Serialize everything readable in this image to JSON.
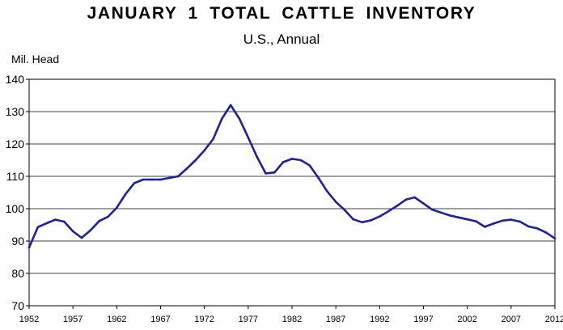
{
  "chart_data": {
    "type": "line",
    "title": "JANUARY 1 TOTAL CATTLE INVENTORY",
    "subtitle": "U.S., Annual",
    "ylabel": "Mil. Head",
    "xlabel": "",
    "ylim": [
      70,
      140
    ],
    "xlim": [
      1952,
      2012
    ],
    "grid": true,
    "line_color": "#1f1fa0",
    "yticks": [
      "70",
      "80",
      "90",
      "100",
      "110",
      "120",
      "130",
      "140"
    ],
    "xticks": [
      "1952",
      "1957",
      "1962",
      "1967",
      "1972",
      "1977",
      "1982",
      "1987",
      "1992",
      "1997",
      "2002",
      "2007",
      "2012"
    ],
    "series": [
      {
        "x": [
          1952,
          1953,
          1954,
          1955,
          1956,
          1957,
          1958,
          1959,
          1960,
          1961,
          1962,
          1963,
          1964,
          1965,
          1966,
          1967,
          1968,
          1969,
          1970,
          1971,
          1972,
          1973,
          1974,
          1975,
          1976,
          1977,
          1978,
          1979,
          1980,
          1981,
          1982,
          1983,
          1984,
          1985,
          1986,
          1987,
          1988,
          1989,
          1990,
          1991,
          1992,
          1993,
          1994,
          1995,
          1996,
          1997,
          1998,
          1999,
          2000,
          2001,
          2002,
          2003,
          2004,
          2005,
          2006,
          2007,
          2008,
          2009,
          2010,
          2011,
          2012
        ],
        "values": [
          88,
          94.3,
          95.5,
          96.6,
          96,
          93,
          91,
          93.3,
          96.2,
          97.5,
          100.3,
          104.5,
          107.9,
          109,
          109,
          109,
          109.5,
          110,
          112.4,
          115,
          118,
          121.5,
          127.8,
          132,
          127.8,
          122,
          116,
          110.9,
          111.2,
          114.4,
          115.4,
          115,
          113.4,
          109.6,
          105.4,
          102.1,
          99.6,
          96.7,
          95.8,
          96.4,
          97.6,
          99.2,
          100.9,
          102.8,
          103.5,
          101.6,
          99.7,
          98.8,
          97.9,
          97.3,
          96.7,
          96.1,
          94.4,
          95.4,
          96.3,
          96.6,
          96,
          94.5,
          93.9,
          92.6,
          90.8
        ]
      }
    ]
  }
}
